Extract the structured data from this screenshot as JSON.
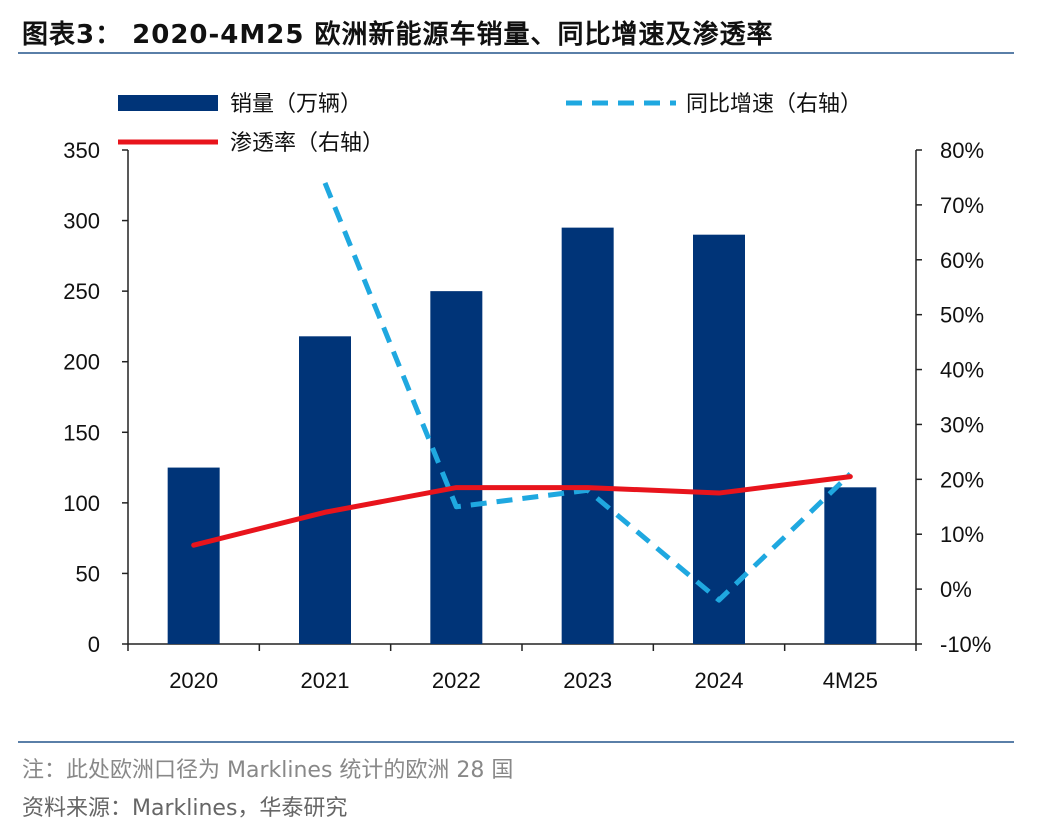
{
  "title": "图表3： 2020-4M25 欧洲新能源车销量、同比增速及渗透率",
  "note": "注：此处欧洲口径为 Marklines 统计的欧洲 28 国",
  "source": "资料来源：Marklines，华泰研究",
  "chart_data": {
    "type": "bar",
    "categories": [
      "2020",
      "2021",
      "2022",
      "2023",
      "2024",
      "4M25"
    ],
    "series": [
      {
        "name": "销量（万辆）",
        "type": "bar",
        "axis": "left",
        "color": "#003478",
        "values": [
          125,
          218,
          250,
          295,
          290,
          111
        ]
      },
      {
        "name": "同比增速（右轴）",
        "type": "line",
        "style": "dashed",
        "axis": "right",
        "color": "#1fa8e0",
        "values": [
          null,
          0.74,
          0.15,
          0.18,
          -0.02,
          0.21
        ]
      },
      {
        "name": "渗透率（右轴）",
        "type": "line",
        "style": "solid",
        "axis": "right",
        "color": "#e8141c",
        "values": [
          0.08,
          0.14,
          0.185,
          0.185,
          0.175,
          0.205
        ]
      }
    ],
    "y_left": {
      "min": 0,
      "max": 350,
      "step": 50,
      "ticks": [
        "0",
        "50",
        "100",
        "150",
        "200",
        "250",
        "300",
        "350"
      ]
    },
    "y_right": {
      "min": -0.1,
      "max": 0.8,
      "step": 0.1,
      "ticks": [
        "-10%",
        "0%",
        "10%",
        "20%",
        "30%",
        "40%",
        "50%",
        "60%",
        "70%",
        "80%"
      ]
    },
    "legend_position": "top",
    "grid": false
  }
}
